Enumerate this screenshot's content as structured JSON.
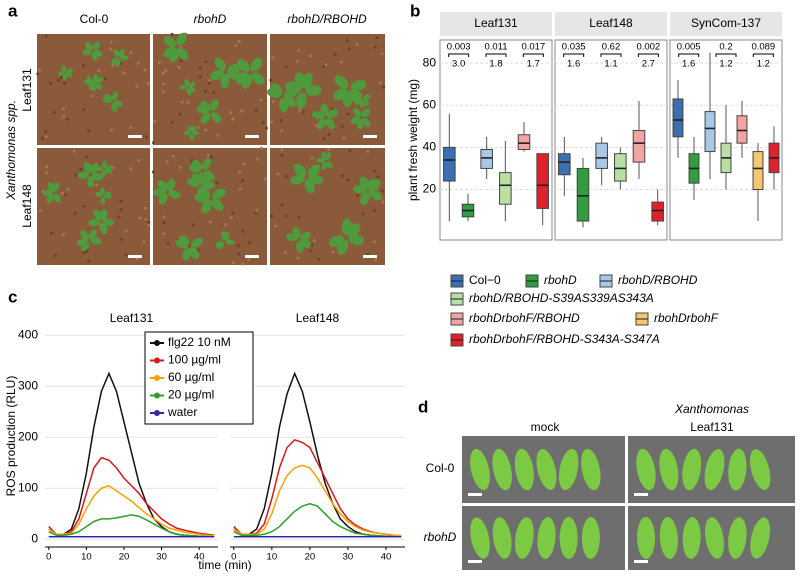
{
  "panel_labels": [
    "a",
    "b",
    "c",
    "d"
  ],
  "panel_a": {
    "columns": [
      "Col-0",
      "rbohD",
      "rbohD/RBOHD"
    ],
    "rows": [
      "Leaf131",
      "Leaf148"
    ],
    "row_group": "Xanthomonas spp."
  },
  "chart_data": [
    {
      "type": "box",
      "y_label": "plant fresh weight (mg)",
      "ylim": [
        -4,
        91
      ],
      "yticks": [
        20,
        40,
        60,
        80
      ],
      "grid": true,
      "series": [
        {
          "name": "Col−0",
          "color": "#3a6fb0"
        },
        {
          "name": "rbohD",
          "color": "#2e9e3e"
        },
        {
          "name": "rbohD/RBOHD",
          "color": "#a9c8e8"
        },
        {
          "name": "rbohD/RBOHD-S39AS339AS343A",
          "color": "#b8e0a4"
        },
        {
          "name": "rbohDrbohF/RBOHD",
          "color": "#f4a3a3"
        },
        {
          "name": "rbohDrbohF",
          "color": "#f6c76e"
        },
        {
          "name": "rbohDrbohF/RBOHD-S343A-S347A",
          "color": "#e0202a"
        }
      ],
      "facets": [
        {
          "title": "Leaf131",
          "comparisons": [
            {
              "p": "0.003",
              "fold": "3.0"
            },
            {
              "p": "0.011",
              "fold": "1.8"
            },
            {
              "p": "0.017",
              "fold": "1.7"
            }
          ],
          "whislo": [
            5,
            5,
            25,
            5,
            38,
            null,
            3
          ],
          "q1": [
            24,
            7,
            30,
            13,
            39,
            null,
            11
          ],
          "median": [
            34,
            10,
            35,
            22,
            42,
            null,
            22
          ],
          "q3": [
            40,
            13,
            39,
            28,
            46,
            null,
            37
          ],
          "whishi": [
            56,
            18,
            45,
            43,
            52,
            null,
            37
          ]
        },
        {
          "title": "Leaf148",
          "comparisons": [
            {
              "p": "0.035",
              "fold": "1.6"
            },
            {
              "p": "0.62",
              "fold": "1.1"
            },
            {
              "p": "0.002",
              "fold": "2.7"
            }
          ],
          "whislo": [
            17,
            2,
            22,
            20,
            25,
            null,
            3
          ],
          "q1": [
            27,
            5,
            30,
            24,
            33,
            null,
            5
          ],
          "median": [
            33,
            17,
            35,
            30,
            42,
            null,
            10
          ],
          "q3": [
            37,
            30,
            42,
            37,
            48,
            null,
            14
          ],
          "whishi": [
            45,
            35,
            45,
            40,
            62,
            null,
            20
          ]
        },
        {
          "title": "SynCom-137",
          "comparisons": [
            {
              "p": "0.005",
              "fold": "1.6"
            },
            {
              "p": "0.2",
              "fold": "1.2"
            },
            {
              "p": "0.089",
              "fold": "1.2"
            }
          ],
          "whislo": [
            35,
            15,
            25,
            20,
            35,
            5,
            20
          ],
          "q1": [
            45,
            23,
            38,
            28,
            42,
            20,
            28
          ],
          "median": [
            53,
            30,
            49,
            35,
            48,
            30,
            35
          ],
          "q3": [
            63,
            37,
            57,
            42,
            55,
            38,
            42
          ],
          "whishi": [
            72,
            45,
            85,
            60,
            62,
            42,
            50
          ]
        }
      ]
    },
    {
      "type": "line",
      "y_label": "ROS production (RLU)",
      "x_label": "time (min)",
      "xlim": [
        -1,
        45
      ],
      "ylim": [
        -15,
        420
      ],
      "xticks": [
        0,
        10,
        20,
        30,
        40
      ],
      "yticks": [
        0,
        100,
        200,
        300,
        400
      ],
      "grid": true,
      "legend": [
        {
          "name": "flg22 10 nM",
          "color": "#111111"
        },
        {
          "name": "100 µg/ml",
          "color": "#d7191c"
        },
        {
          "name": "60 µg/ml",
          "color": "#f5a300"
        },
        {
          "name": "20 µg/ml",
          "color": "#2ca02c"
        },
        {
          "name": "water",
          "color": "#2c2ca0"
        }
      ],
      "x": [
        0,
        2,
        4,
        6,
        8,
        10,
        12,
        14,
        16,
        18,
        20,
        22,
        24,
        26,
        28,
        30,
        32,
        34,
        36,
        38,
        40,
        42,
        44
      ],
      "facets": [
        {
          "title": "Leaf131",
          "values": [
            [
              20,
              10,
              10,
              20,
              60,
              130,
              220,
              290,
              325,
              290,
              230,
              170,
              110,
              70,
              40,
              25,
              15,
              10,
              8,
              7,
              6,
              5,
              5
            ],
            [
              25,
              10,
              10,
              15,
              40,
              90,
              140,
              160,
              155,
              140,
              120,
              105,
              90,
              70,
              55,
              40,
              30,
              22,
              18,
              15,
              12,
              10,
              8
            ],
            [
              20,
              10,
              10,
              12,
              30,
              60,
              85,
              100,
              105,
              95,
              85,
              75,
              62,
              50,
              40,
              30,
              22,
              18,
              14,
              12,
              10,
              8,
              7
            ],
            [
              15,
              8,
              8,
              10,
              15,
              25,
              35,
              40,
              40,
              42,
              45,
              48,
              45,
              38,
              30,
              22,
              15,
              10,
              8,
              7,
              6,
              5,
              5
            ],
            [
              5,
              5,
              5,
              5,
              5,
              5,
              5,
              5,
              5,
              5,
              5,
              5,
              5,
              5,
              5,
              5,
              5,
              5,
              5,
              5,
              5,
              5,
              5
            ]
          ]
        },
        {
          "title": "Leaf148",
          "values": [
            [
              20,
              10,
              10,
              20,
              60,
              130,
              220,
              285,
              325,
              290,
              230,
              165,
              110,
              70,
              40,
              25,
              15,
              10,
              8,
              7,
              6,
              5,
              5
            ],
            [
              25,
              10,
              10,
              12,
              30,
              80,
              140,
              180,
              195,
              190,
              180,
              150,
              120,
              90,
              60,
              40,
              28,
              20,
              15,
              12,
              10,
              8,
              7
            ],
            [
              20,
              10,
              10,
              10,
              20,
              50,
              95,
              125,
              140,
              145,
              140,
              120,
              95,
              70,
              50,
              35,
              25,
              18,
              14,
              12,
              10,
              8,
              7
            ],
            [
              15,
              8,
              8,
              8,
              10,
              15,
              25,
              40,
              55,
              65,
              70,
              65,
              50,
              35,
              25,
              18,
              12,
              10,
              8,
              7,
              6,
              5,
              5
            ],
            [
              5,
              5,
              5,
              5,
              5,
              5,
              5,
              5,
              5,
              5,
              5,
              5,
              5,
              5,
              5,
              5,
              5,
              5,
              5,
              5,
              5,
              5,
              5
            ]
          ]
        }
      ]
    }
  ],
  "panel_d": {
    "columns": [
      "mock",
      "Xanthomonas",
      "Leaf131"
    ],
    "rows": [
      "Col-0",
      "rbohD"
    ]
  }
}
